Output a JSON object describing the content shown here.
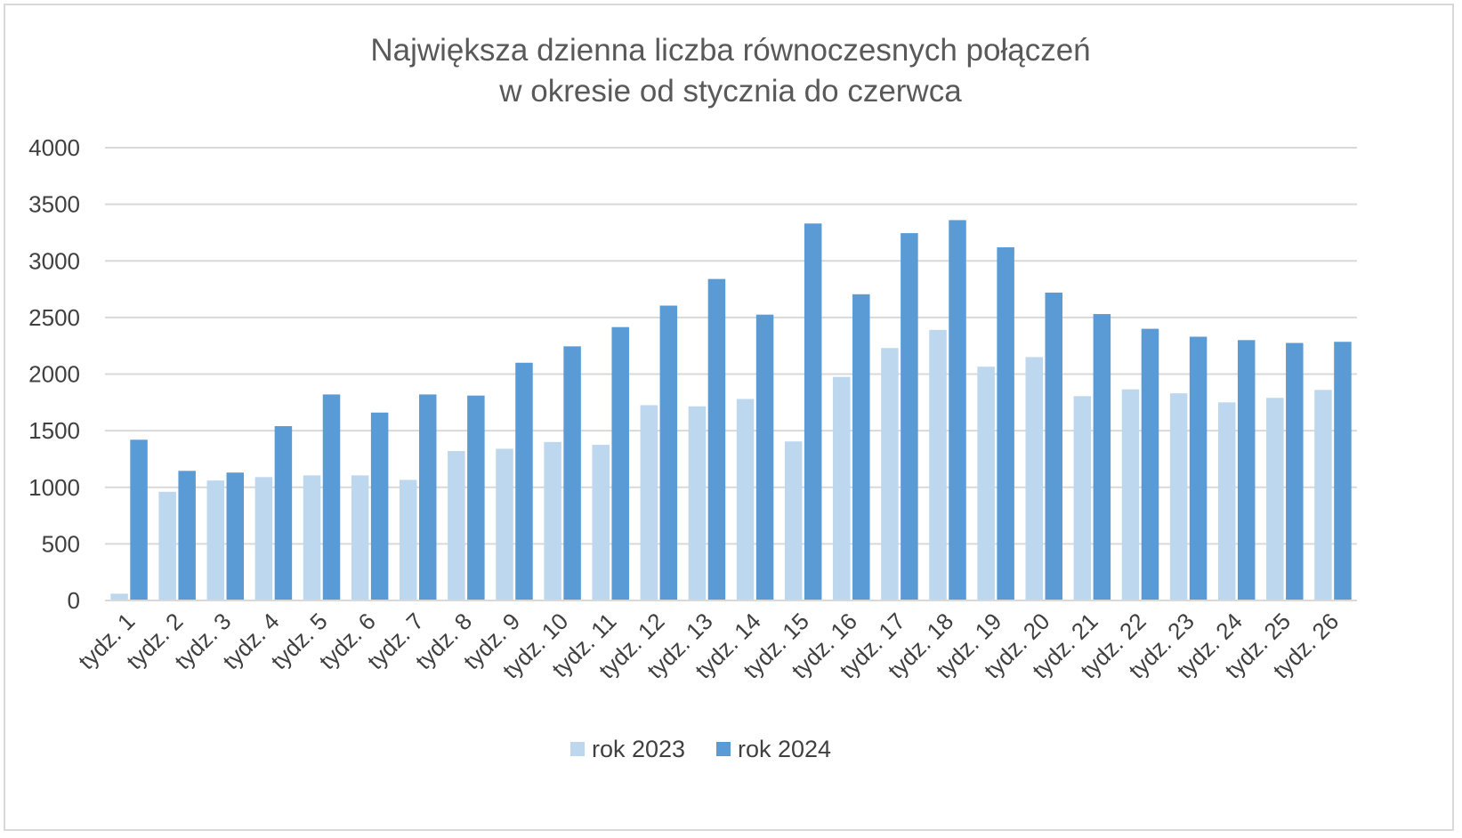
{
  "chart_data": {
    "type": "bar",
    "title": [
      "Największa dzienna liczba równoczesnych połączeń",
      "w okresie od stycznia do czerwca"
    ],
    "xlabel": "",
    "ylabel": "",
    "ylim": [
      0,
      4000
    ],
    "yticks": [
      "0",
      "500",
      "1000",
      "1500",
      "2000",
      "2500",
      "3000",
      "3500",
      "4000"
    ],
    "ytick_values": [
      0,
      500,
      1000,
      1500,
      2000,
      2500,
      3000,
      3500,
      4000
    ],
    "grid": true,
    "legend_position": "bottom",
    "categories": [
      "tydz. 1",
      "tydz. 2",
      "tydz. 3",
      "tydz. 4",
      "tydz. 5",
      "tydz. 6",
      "tydz. 7",
      "tydz. 8",
      "tydz. 9",
      "tydz. 10",
      "tydz. 11",
      "tydz. 12",
      "tydz. 13",
      "tydz. 14",
      "tydz. 15",
      "tydz. 16",
      "tydz. 17",
      "tydz. 18",
      "tydz. 19",
      "tydz. 20",
      "tydz. 21",
      "tydz. 22",
      "tydz. 23",
      "tydz. 24",
      "tydz. 25",
      "tydz. 26"
    ],
    "series": [
      {
        "name": "rok 2023",
        "color": "#bdd7ee",
        "values": [
          60,
          960,
          1060,
          1090,
          1105,
          1105,
          1065,
          1320,
          1340,
          1400,
          1375,
          1725,
          1715,
          1780,
          1405,
          1975,
          2230,
          2390,
          2065,
          2150,
          1805,
          1865,
          1830,
          1750,
          1790,
          1860
        ]
      },
      {
        "name": "rok 2024",
        "color": "#5b9bd5",
        "values": [
          1420,
          1145,
          1130,
          1540,
          1820,
          1660,
          1820,
          1810,
          2100,
          2245,
          2415,
          2605,
          2840,
          2525,
          3330,
          2705,
          3245,
          3360,
          3120,
          2720,
          2530,
          2400,
          2330,
          2300,
          2275,
          2285
        ]
      }
    ]
  }
}
